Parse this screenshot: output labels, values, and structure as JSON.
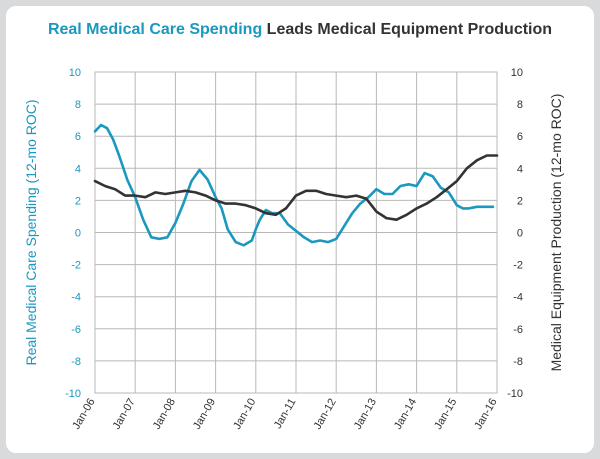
{
  "colors": {
    "blue": "#1b98be",
    "dark": "#333333",
    "grid": "#b8b8b8",
    "background": "#d9dadb"
  },
  "chart_data": {
    "type": "line",
    "title": {
      "part1": "Real Medical Care Spending",
      "part2": "Leads Medical Equipment Production"
    },
    "x_tick_labels": [
      "Jan-06",
      "Jan-07",
      "Jan-08",
      "Jan-09",
      "Jan-10",
      "Jan-11",
      "Jan-12",
      "Jan-13",
      "Jan-14",
      "Jan-15",
      "Jan-16"
    ],
    "y_left": {
      "label": "Real Medical Care Spending (12-mo ROC)",
      "range": [
        -10,
        10
      ],
      "ticks": [
        10,
        8,
        6,
        4,
        2,
        0,
        -2,
        -4,
        -6,
        -8,
        -10
      ]
    },
    "y_right": {
      "label": "Medical Equipment Production (12-mo ROC)",
      "range": [
        -10,
        10
      ],
      "ticks": [
        10,
        8,
        6,
        4,
        2,
        0,
        -2,
        -4,
        -6,
        -8,
        -10
      ]
    },
    "grid": true,
    "series": [
      {
        "name": "Real Medical Care Spending",
        "axis": "left",
        "color": "#1b98be",
        "x": [
          2006.0,
          2006.15,
          2006.3,
          2006.45,
          2006.6,
          2006.8,
          2007.0,
          2007.2,
          2007.4,
          2007.6,
          2007.8,
          2008.0,
          2008.2,
          2008.4,
          2008.6,
          2008.8,
          2009.0,
          2009.15,
          2009.3,
          2009.5,
          2009.7,
          2009.9,
          2010.0,
          2010.1,
          2010.25,
          2010.4,
          2010.6,
          2010.8,
          2011.0,
          2011.2,
          2011.4,
          2011.6,
          2011.8,
          2012.0,
          2012.2,
          2012.4,
          2012.6,
          2012.8,
          2013.0,
          2013.2,
          2013.4,
          2013.6,
          2013.8,
          2014.0,
          2014.2,
          2014.4,
          2014.6,
          2014.8,
          2015.0,
          2015.15,
          2015.3,
          2015.5,
          2015.7,
          2015.9
        ],
        "y": [
          6.3,
          6.7,
          6.5,
          5.8,
          4.8,
          3.3,
          2.2,
          0.8,
          -0.3,
          -0.4,
          -0.3,
          0.6,
          1.8,
          3.2,
          3.9,
          3.3,
          2.2,
          1.5,
          0.2,
          -0.6,
          -0.8,
          -0.5,
          0.2,
          0.8,
          1.4,
          1.2,
          1.2,
          0.5,
          0.1,
          -0.3,
          -0.6,
          -0.5,
          -0.6,
          -0.4,
          0.4,
          1.2,
          1.8,
          2.2,
          2.7,
          2.4,
          2.4,
          2.9,
          3.0,
          2.9,
          3.7,
          3.5,
          2.8,
          2.5,
          1.7,
          1.5,
          1.5,
          1.6,
          1.6,
          1.6
        ]
      },
      {
        "name": "Medical Equipment Production",
        "axis": "right",
        "color": "#333333",
        "x": [
          2006.0,
          2006.25,
          2006.5,
          2006.75,
          2007.0,
          2007.25,
          2007.5,
          2007.75,
          2008.0,
          2008.25,
          2008.5,
          2008.75,
          2009.0,
          2009.25,
          2009.5,
          2009.75,
          2010.0,
          2010.25,
          2010.5,
          2010.75,
          2011.0,
          2011.25,
          2011.5,
          2011.75,
          2012.0,
          2012.25,
          2012.5,
          2012.75,
          2013.0,
          2013.25,
          2013.5,
          2013.75,
          2014.0,
          2014.25,
          2014.5,
          2014.75,
          2015.0,
          2015.25,
          2015.5,
          2015.75,
          2016.0
        ],
        "y": [
          3.2,
          2.9,
          2.7,
          2.3,
          2.3,
          2.2,
          2.5,
          2.4,
          2.5,
          2.6,
          2.5,
          2.3,
          2.0,
          1.8,
          1.8,
          1.7,
          1.5,
          1.2,
          1.1,
          1.5,
          2.3,
          2.6,
          2.6,
          2.4,
          2.3,
          2.2,
          2.3,
          2.1,
          1.3,
          0.9,
          0.8,
          1.1,
          1.5,
          1.8,
          2.2,
          2.7,
          3.2,
          4.0,
          4.5,
          4.8,
          4.8
        ]
      }
    ]
  }
}
